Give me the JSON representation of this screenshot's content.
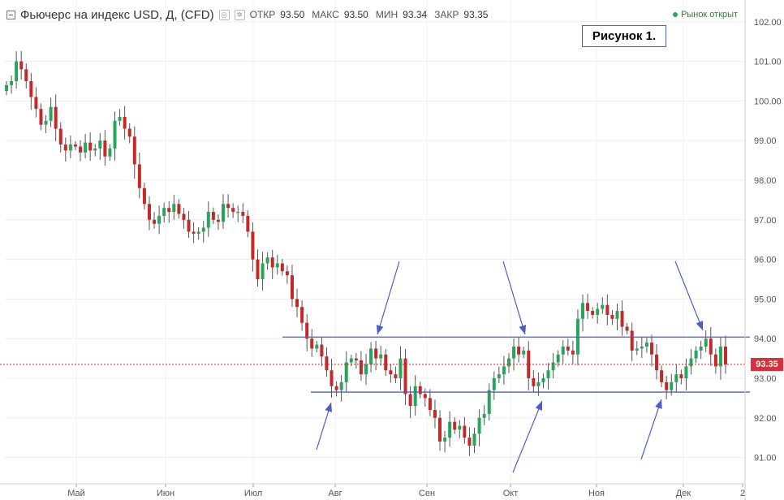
{
  "header": {
    "title": "Фьючерс на индекс USD, Д, (CFD)",
    "open_label": "ОТКР",
    "open_value": "93.50",
    "high_label": "МАКС",
    "high_value": "93.50",
    "low_label": "МИН",
    "low_value": "93.34",
    "close_label": "ЗАКР",
    "close_value": "93.35",
    "icons": [
      "collapse-icon",
      "settings-icon",
      "gear-icon"
    ]
  },
  "market_status": "Рынок открыт",
  "figure_label": "Рисунок 1.",
  "price_label": "93.35",
  "colors": {
    "up": "#26a65b",
    "down": "#c62828",
    "lines": "#4a5fc1",
    "price_line": "#c62828"
  },
  "chart_data": {
    "type": "candlestick",
    "instrument": "Фьючерс на индекс USD",
    "timeframe": "Д",
    "x_tick_labels": [
      "Май",
      "Июн",
      "Июл",
      "Авг",
      "Сен",
      "Окт",
      "Ноя",
      "Дек",
      "2"
    ],
    "y_tick_labels": [
      "91.00",
      "92.00",
      "93.00",
      "94.00",
      "95.00",
      "96.00",
      "97.00",
      "98.00",
      "99.00",
      "100.00",
      "101.00",
      "102.00"
    ],
    "ylim": [
      90.6,
      102.3
    ],
    "last_price": 93.35,
    "resistance_level": 94.04,
    "support_level": 92.65,
    "candles_close": [
      100.4,
      100.5,
      101.0,
      100.8,
      100.5,
      100.1,
      99.8,
      99.4,
      99.5,
      99.85,
      99.3,
      98.9,
      98.75,
      98.9,
      98.85,
      98.7,
      98.95,
      98.75,
      98.8,
      99.0,
      98.6,
      98.8,
      99.5,
      99.6,
      99.3,
      99.1,
      98.4,
      97.8,
      97.4,
      97.0,
      96.9,
      97.1,
      97.3,
      97.2,
      97.4,
      97.15,
      97.0,
      96.7,
      96.65,
      96.7,
      96.8,
      97.2,
      97.0,
      96.95,
      97.4,
      97.3,
      97.2,
      97.2,
      97.1,
      96.7,
      96.0,
      95.5,
      95.9,
      96.05,
      95.8,
      95.9,
      95.7,
      95.6,
      95.0,
      94.8,
      94.4,
      94.0,
      93.75,
      93.85,
      93.55,
      93.2,
      92.8,
      92.7,
      92.9,
      93.4,
      93.5,
      93.45,
      93.1,
      93.35,
      93.75,
      93.5,
      93.6,
      93.2,
      93.1,
      93.0,
      93.5,
      92.6,
      92.3,
      92.8,
      92.6,
      92.5,
      92.2,
      92.0,
      91.4,
      91.5,
      91.9,
      91.7,
      91.8,
      91.5,
      91.3,
      91.6,
      92.0,
      92.1,
      92.7,
      93.0,
      93.1,
      93.3,
      93.5,
      93.8,
      93.6,
      93.7,
      93.0,
      92.8,
      92.9,
      93.0,
      93.2,
      93.4,
      93.6,
      93.8,
      93.7,
      93.6,
      94.5,
      94.9,
      94.7,
      94.6,
      94.75,
      94.85,
      94.6,
      94.5,
      94.7,
      94.3,
      94.2,
      93.7,
      93.75,
      93.8,
      93.9,
      93.6,
      93.2,
      92.9,
      92.7,
      92.9,
      93.1,
      93.0,
      93.3,
      93.5,
      93.7,
      93.8,
      94.0,
      93.6,
      93.3,
      93.8,
      93.35
    ]
  }
}
